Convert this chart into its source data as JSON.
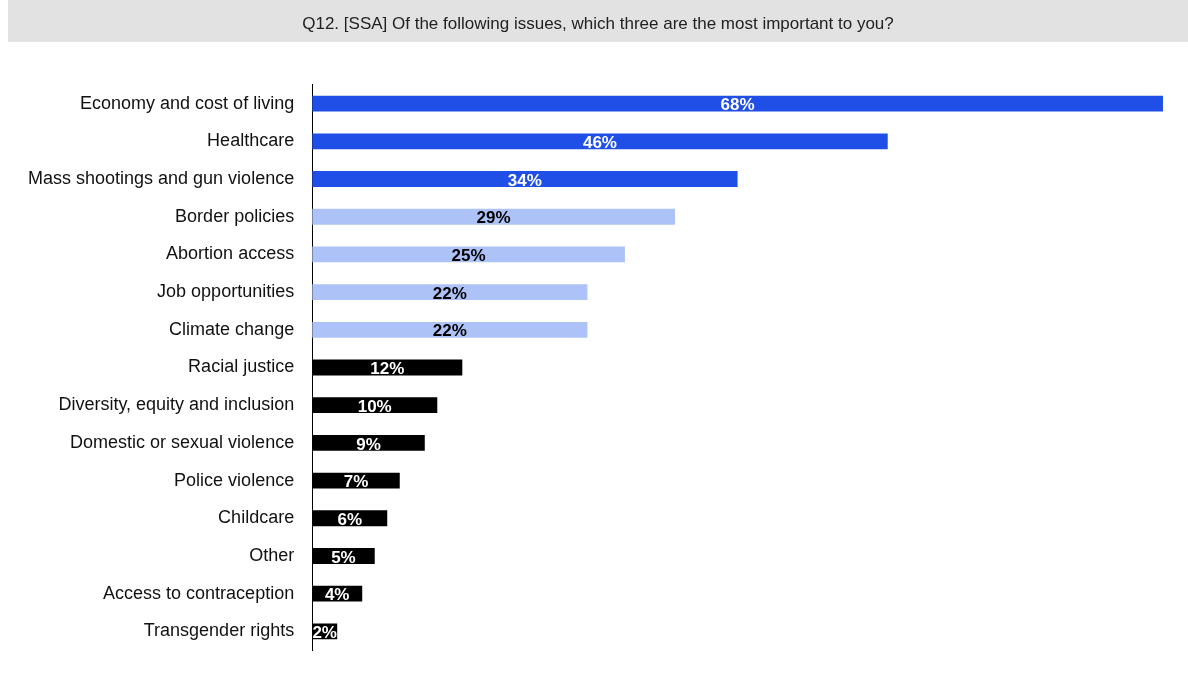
{
  "chart_data": {
    "type": "bar",
    "orientation": "horizontal",
    "title": "Q12. [SSA] Of the following issues, which three are the most important to you?",
    "categories": [
      "Economy and cost of living",
      "Healthcare",
      "Mass shootings and gun violence",
      "Border policies",
      "Abortion access",
      "Job opportunities",
      "Climate change",
      "Racial justice",
      "Diversity, equity and inclusion",
      "Domestic or sexual violence",
      "Police violence",
      "Childcare",
      "Other",
      "Access to contraception",
      "Transgender rights"
    ],
    "values": [
      68,
      46,
      34,
      29,
      25,
      22,
      22,
      12,
      10,
      9,
      7,
      6,
      5,
      4,
      2
    ],
    "colors": [
      "#1f4fe6",
      "#1f4fe6",
      "#1f4fe6",
      "#adc3f7",
      "#adc3f7",
      "#adc3f7",
      "#adc3f7",
      "#000000",
      "#000000",
      "#000000",
      "#000000",
      "#000000",
      "#000000",
      "#000000",
      "#000000"
    ],
    "value_labels": [
      "68%",
      "46%",
      "34%",
      "29%",
      "25%",
      "22%",
      "22%",
      "12%",
      "10%",
      "9%",
      "7%",
      "6%",
      "5%",
      "4%",
      "2%"
    ],
    "grid": false,
    "legend": false
  }
}
